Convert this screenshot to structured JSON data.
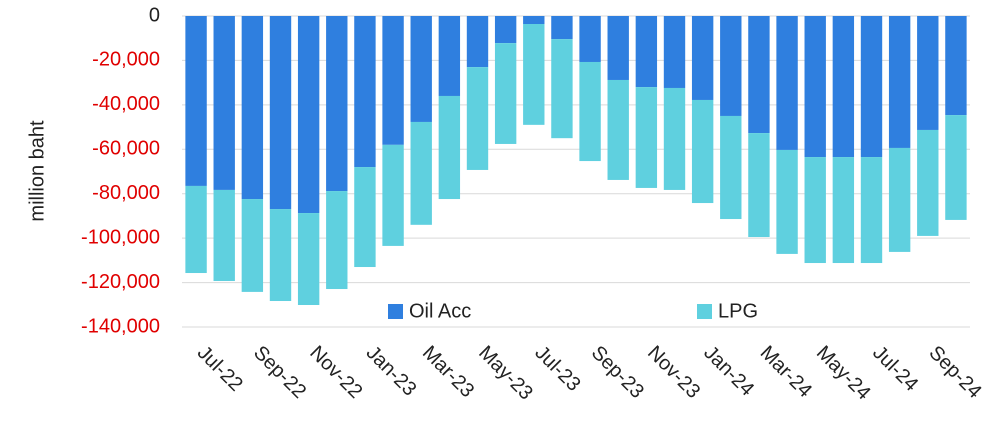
{
  "chart_data": {
    "type": "stacked-bar",
    "y_label": "million baht",
    "categories": [
      "Jul-22",
      null,
      "Sep-22",
      null,
      "Nov-22",
      null,
      "Jan-23",
      null,
      "Mar-23",
      null,
      "May-23",
      null,
      "Jul-23",
      null,
      "Sep-23",
      null,
      "Nov-23",
      null,
      "Jan-24",
      null,
      "Mar-24",
      null,
      "May-24",
      null,
      "Jul-24",
      null,
      "Sep-24",
      null
    ],
    "series": [
      {
        "name": "Oil Acc",
        "color": "#2f7fdf",
        "values": [
          -76.5,
          -78.3,
          -82.4,
          -86.9,
          -88.7,
          -78.8,
          -68,
          -58,
          -47.7,
          -36,
          -23,
          -12.2,
          -3.6,
          -10.4,
          -20.7,
          -28.8,
          -32,
          -32.4,
          -37.8,
          -45,
          -52.7,
          -60.3,
          -63.5,
          -63.5,
          -63.5,
          -59.4,
          -51.3,
          -44.6
        ]
      },
      {
        "name": "LPG",
        "color": "#5fd0df",
        "values": [
          -39.2,
          -41,
          -41.8,
          -41.4,
          -41.4,
          -44.1,
          -45,
          -45.5,
          -46.3,
          -46.4,
          -46.3,
          -45.4,
          -45.4,
          -44.6,
          -44.6,
          -45,
          -45.4,
          -45.9,
          -46.4,
          -46.4,
          -46.8,
          -46.8,
          -47.7,
          -47.7,
          -47.7,
          -46.8,
          -47.7,
          -47.2
        ]
      }
    ],
    "value_unit": 1000,
    "ylim": [
      -140,
      0
    ],
    "yticks": [
      0,
      {
        "value": -20,
        "label": "-20,000"
      },
      {
        "value": -40,
        "label": "-40,000"
      },
      {
        "value": -60,
        "label": "-60,000"
      },
      {
        "value": -80,
        "label": "-80,000"
      },
      {
        "value": -100,
        "label": "-100,000"
      },
      {
        "value": -120,
        "label": "-120,000"
      },
      {
        "value": -140,
        "label": "-140,000"
      }
    ],
    "negative_tick_color": "#e00000",
    "grid": true,
    "legend": "lower center"
  }
}
